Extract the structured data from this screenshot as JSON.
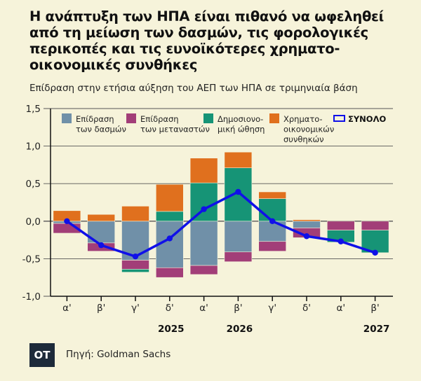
{
  "title": "Η ανάπτυξη των ΗΠΑ είναι πιθανό να ωφεληθεί από τη μείωση των δασμών, τις φορολογικές περικοπές και τις ευνοϊκότερες χρηματο-οικονομικές συνθήκες",
  "subtitle": "Επίδραση στην ετήσια αύξηση του ΑΕΠ των ΗΠΑ σε τριμηνιαία βάση",
  "source": "Πηγή: Goldman Sachs",
  "logo": "OT",
  "chart_data": {
    "type": "bar",
    "stacked": true,
    "categories": [
      "α'",
      "β'",
      "γ'",
      "δ'",
      "α'",
      "β'",
      "γ'",
      "δ'",
      "α'",
      "β'"
    ],
    "year_labels": [
      {
        "label": "2025",
        "under": 3
      },
      {
        "label": "2026",
        "under": 5
      },
      {
        "label": "2027",
        "under": 9
      }
    ],
    "ylim": [
      -1.0,
      1.5
    ],
    "yticks": [
      "1,5",
      "1,0",
      "0,5",
      "0,0",
      "-0,5",
      "-1,0"
    ],
    "ytick_values": [
      1.5,
      1.0,
      0.5,
      0.0,
      -0.5,
      -1.0
    ],
    "grid": true,
    "legend_position": "top",
    "series": [
      {
        "name": "Επίδραση των δασμών",
        "legend_lines": [
          "Επίδραση",
          "των δασμών"
        ],
        "color": "#7090a8",
        "values": [
          -0.03,
          -0.29,
          -0.52,
          -0.62,
          -0.59,
          -0.41,
          -0.27,
          -0.09,
          0,
          0
        ]
      },
      {
        "name": "Επίδραση των μεταναστών",
        "legend_lines": [
          "Επίδραση",
          "των μεταναστών"
        ],
        "color": "#a23e78",
        "values": [
          -0.13,
          -0.11,
          -0.12,
          -0.13,
          -0.12,
          -0.13,
          -0.13,
          -0.13,
          -0.12,
          -0.12
        ]
      },
      {
        "name": "Δημοσιονομική ώθηση",
        "legend_lines": [
          "Δημοσιονο-",
          "μική ώθηση"
        ],
        "color": "#169476",
        "values": [
          0,
          0,
          -0.04,
          0.13,
          0.51,
          0.71,
          0.3,
          0,
          -0.16,
          -0.3
        ]
      },
      {
        "name": "Χρηματοοικονομικών συνθηκών",
        "legend_lines": [
          "Χρηματο-",
          "οικονομικών",
          "συνθηκών"
        ],
        "color": "#e0701e",
        "values": [
          0.14,
          0.09,
          0.2,
          0.36,
          0.33,
          0.21,
          0.09,
          0.02,
          0,
          0
        ]
      }
    ],
    "line": {
      "name": "ΣΥΝΟΛΟ",
      "color": "#1010e8",
      "values": [
        0.0,
        -0.32,
        -0.47,
        -0.23,
        0.16,
        0.39,
        0.0,
        -0.2,
        -0.27,
        -0.42
      ]
    }
  }
}
